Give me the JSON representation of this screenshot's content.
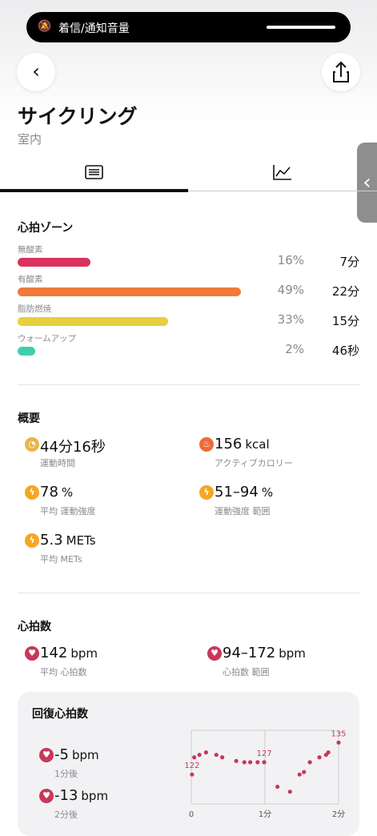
{
  "status": {
    "notice": "着信/通知音量"
  },
  "header": {
    "title": "サイクリング",
    "subtitle": "室内"
  },
  "zones": {
    "title": "心拍ゾーン",
    "items": [
      {
        "name": "無酸素",
        "value": 16,
        "value_label": "16%",
        "time": "7分",
        "color": "#d9325f"
      },
      {
        "name": "有酸素",
        "value": 49,
        "value_label": "49%",
        "time": "22分",
        "color": "#f07a3a"
      },
      {
        "name": "脂肪燃焼",
        "value": 33,
        "value_label": "33%",
        "time": "15分",
        "color": "#e8cf3e"
      },
      {
        "name": "ウォームアップ",
        "value": 2,
        "value_label": "2%",
        "time": "46秒",
        "color": "#3fcfb0"
      }
    ]
  },
  "summary": {
    "title": "概要",
    "items": [
      {
        "main": "44分16秒",
        "label": "運動時間"
      },
      {
        "main": "156",
        "unit": "kcal",
        "label": "アクティブカロリー"
      },
      {
        "main": "78",
        "unit": "%",
        "label": "平均 運動強度"
      },
      {
        "main": "51–94",
        "unit": "%",
        "label": "運動強度 範囲"
      },
      {
        "main": "5.3",
        "unit": "METs",
        "label": "平均 METs"
      }
    ]
  },
  "heart": {
    "title": "心拍数",
    "items": [
      {
        "main": "142",
        "unit": "bpm",
        "label": "平均 心拍数"
      },
      {
        "main": "94–172",
        "unit": "bpm",
        "label": "心拍数 範囲"
      }
    ]
  },
  "recovery": {
    "title": "回復心拍数",
    "items": [
      {
        "main": "-5",
        "unit": "bpm",
        "label": "1分後"
      },
      {
        "main": "-13",
        "unit": "bpm",
        "label": "2分後"
      }
    ],
    "chart_data": {
      "type": "scatter",
      "color": "#c8385a",
      "x": [
        0.01,
        0.04,
        0.11,
        0.2,
        0.34,
        0.42,
        0.61,
        0.72,
        0.8,
        0.9,
        0.99,
        1.17,
        1.34,
        1.47,
        1.53,
        1.61,
        1.74,
        1.83,
        1.86,
        2.0
      ],
      "values": [
        122,
        129,
        130,
        131,
        130,
        129,
        127.5,
        127,
        127,
        127,
        127,
        117,
        115,
        122,
        123,
        127,
        129,
        130,
        131,
        135
      ],
      "labeled": [
        0,
        10,
        19
      ],
      "xlim": [
        0,
        2
      ],
      "ylim": [
        110,
        140
      ],
      "xticks": [
        0,
        {
          "value": 1,
          "label": "1分"
        },
        {
          "value": 2,
          "label": "2分"
        }
      ]
    }
  }
}
